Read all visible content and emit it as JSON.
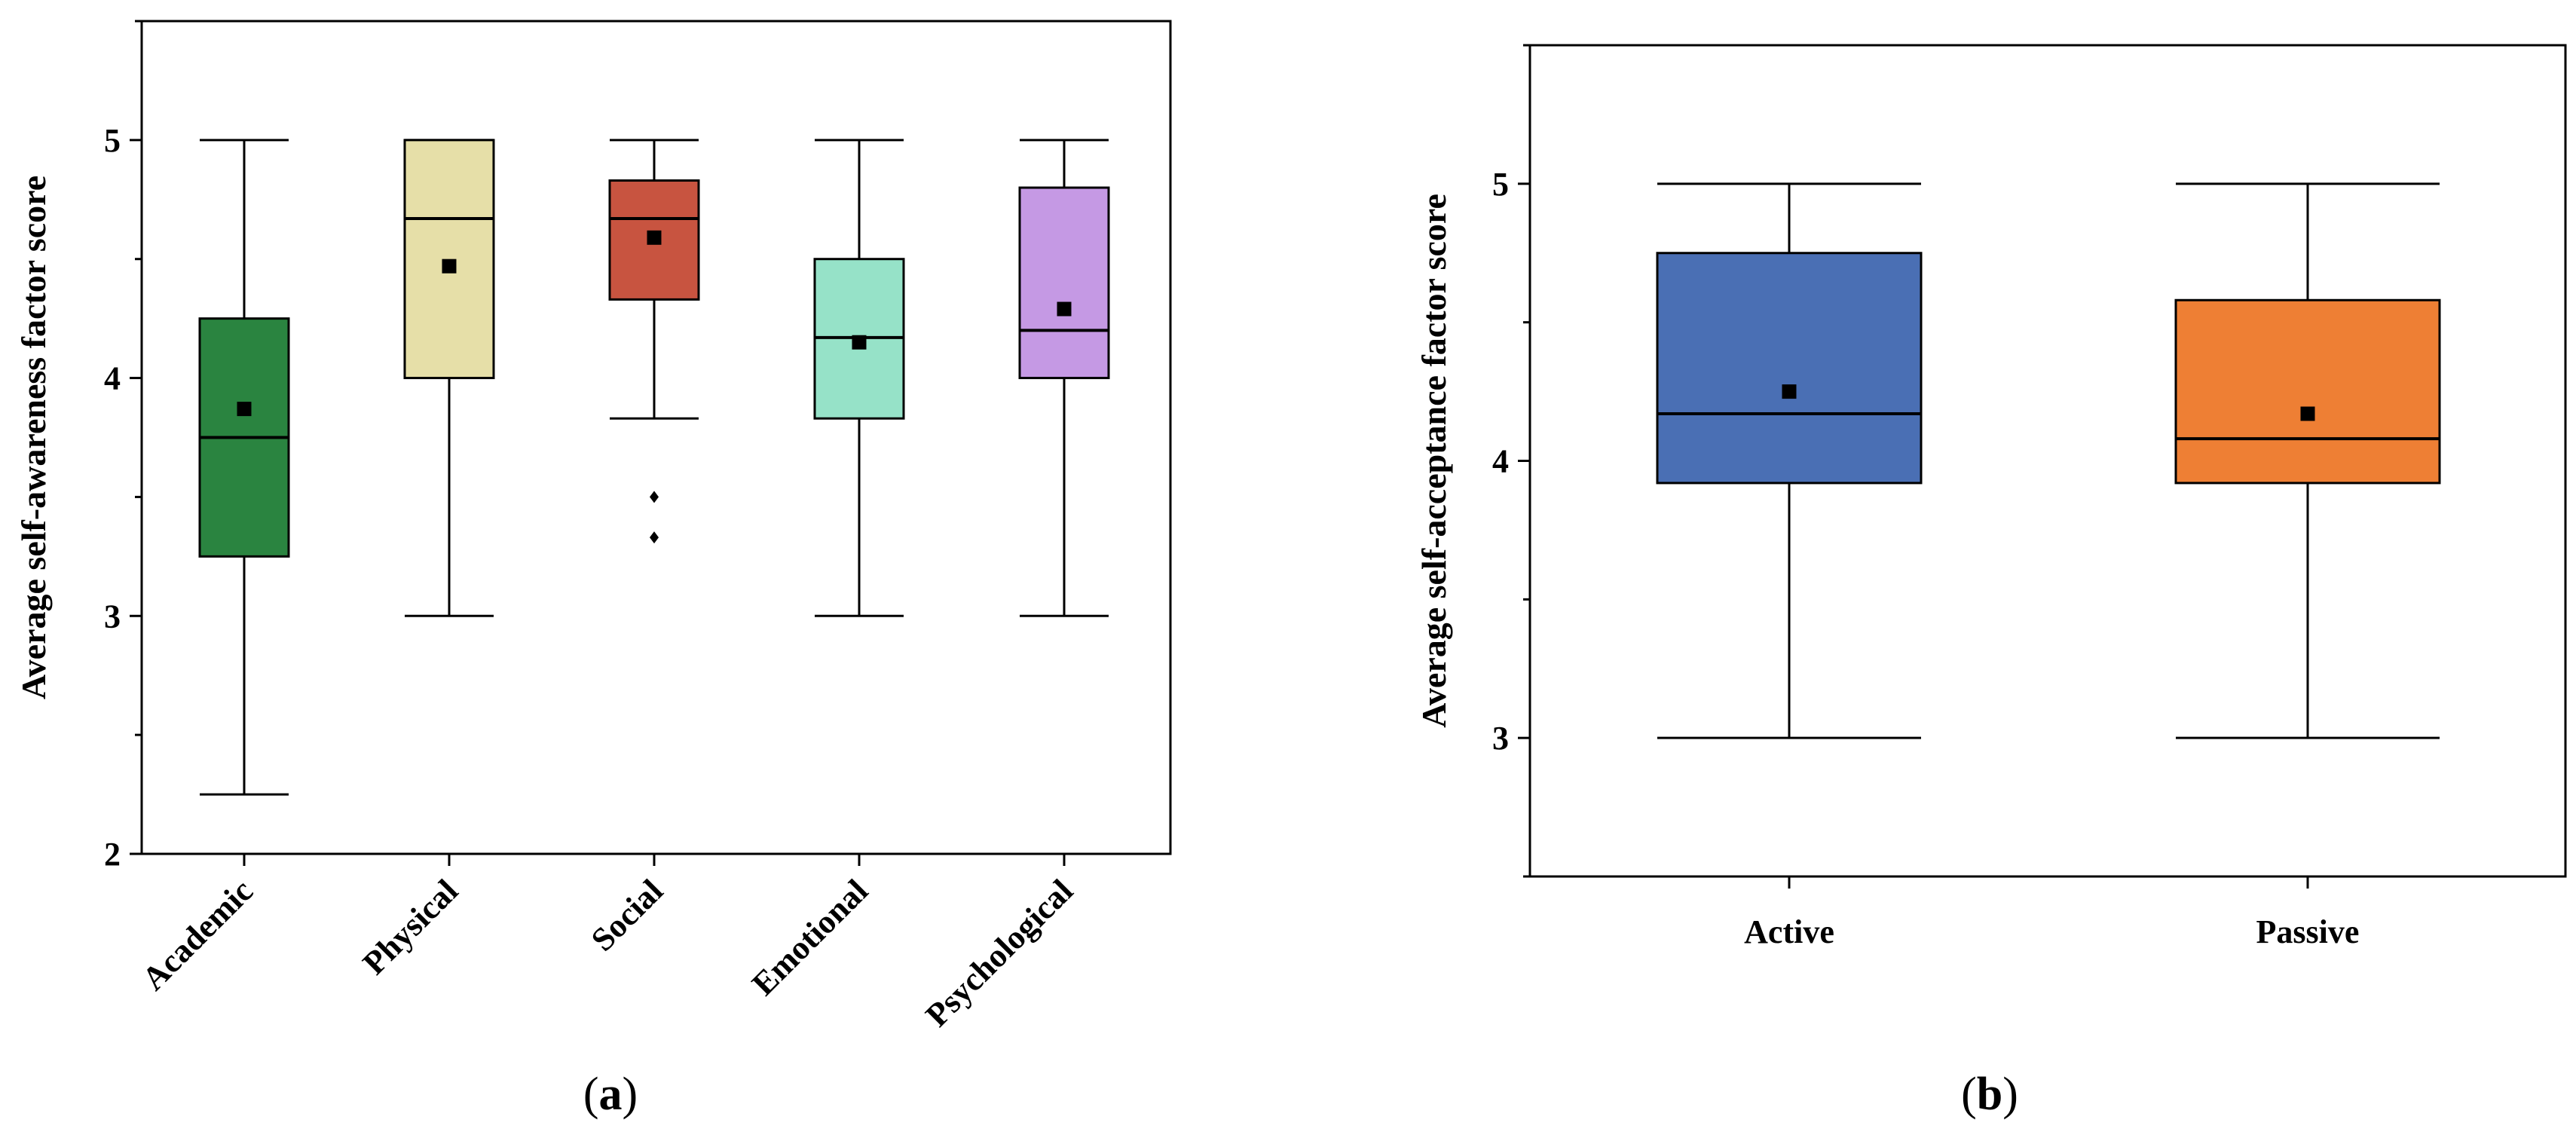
{
  "chart_data": [
    {
      "type": "box",
      "panel_caption": "a",
      "title": "",
      "xlabel": "",
      "ylabel": "Average self-awareness factor score",
      "ylim": [
        2,
        5.5
      ],
      "yticks": [
        2,
        3,
        4,
        5
      ],
      "categories": [
        "Academic",
        "Physical",
        "Social",
        "Emotional",
        "Psychological"
      ],
      "colors": [
        "#2a8440",
        "#e6dfa8",
        "#c85440",
        "#96e2c8",
        "#c599e4"
      ],
      "boxes": [
        {
          "label": "Academic",
          "whisker_low": 2.25,
          "q1": 3.25,
          "median": 3.75,
          "q3": 4.25,
          "whisker_high": 5.0,
          "mean": 3.87,
          "outliers": []
        },
        {
          "label": "Physical",
          "whisker_low": 3.0,
          "q1": 4.0,
          "median": 4.67,
          "q3": 5.0,
          "whisker_high": 5.0,
          "mean": 4.47,
          "outliers": []
        },
        {
          "label": "Social",
          "whisker_low": 3.83,
          "q1": 4.33,
          "median": 4.67,
          "q3": 4.83,
          "whisker_high": 5.0,
          "mean": 4.59,
          "outliers": [
            3.5,
            3.33
          ]
        },
        {
          "label": "Emotional",
          "whisker_low": 3.0,
          "q1": 3.83,
          "median": 4.17,
          "q3": 4.5,
          "whisker_high": 5.0,
          "mean": 4.15,
          "outliers": []
        },
        {
          "label": "Psychological",
          "whisker_low": 3.0,
          "q1": 4.0,
          "median": 4.2,
          "q3": 4.8,
          "whisker_high": 5.0,
          "mean": 4.29,
          "outliers": []
        }
      ]
    },
    {
      "type": "box",
      "panel_caption": "b",
      "title": "",
      "xlabel": "",
      "ylabel": "Average self-acceptance factor score",
      "ylim": [
        2.5,
        5.5
      ],
      "yticks": [
        3,
        4,
        5
      ],
      "categories": [
        "Active",
        "Passive"
      ],
      "colors": [
        "#4a6fb4",
        "#ee7f34"
      ],
      "boxes": [
        {
          "label": "Active",
          "whisker_low": 3.0,
          "q1": 3.92,
          "median": 4.17,
          "q3": 4.75,
          "whisker_high": 5.0,
          "mean": 4.25,
          "outliers": []
        },
        {
          "label": "Passive",
          "whisker_low": 3.0,
          "q1": 3.92,
          "median": 4.08,
          "q3": 4.58,
          "whisker_high": 5.0,
          "mean": 4.17,
          "outliers": []
        }
      ]
    }
  ]
}
